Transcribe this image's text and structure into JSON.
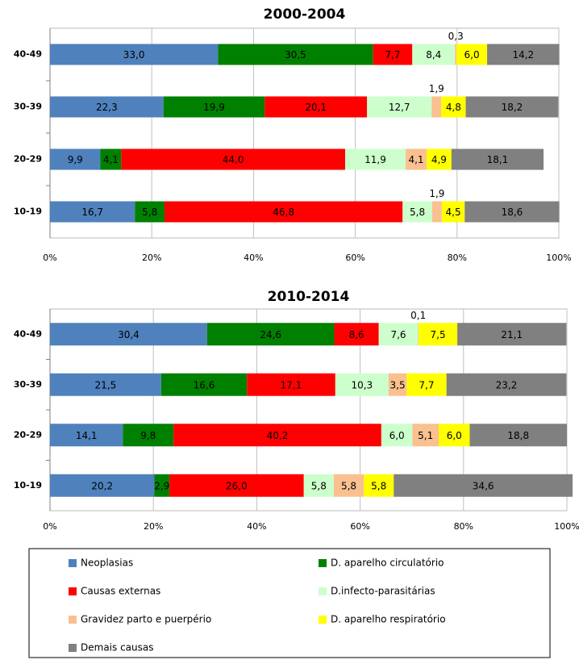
{
  "chart_data": [
    {
      "type": "stacked-bar-horizontal",
      "title": "2000-2004",
      "categories": [
        "40-49",
        "30-39",
        "20-29",
        "10-19"
      ],
      "xlim": [
        0,
        100
      ],
      "xticks": [
        {
          "value": 0,
          "label": "0%"
        },
        {
          "value": 20,
          "label": "20%"
        },
        {
          "value": 40,
          "label": "40%"
        },
        {
          "value": 60,
          "label": "60%"
        },
        {
          "value": 80,
          "label": "80%"
        },
        {
          "value": 100,
          "label": "100%"
        }
      ],
      "grid": true,
      "series": [
        {
          "name": "Neoplasias",
          "color": "#4f81bd",
          "values": [
            33.0,
            22.3,
            9.9,
            16.7
          ],
          "value_labels": [
            "33,0",
            "22,3",
            "9,9",
            "16,7"
          ]
        },
        {
          "name": "D. aparelho circulatório",
          "color": "#008000",
          "values": [
            30.5,
            19.9,
            4.1,
            5.8
          ],
          "value_labels": [
            "30,5",
            "19,9",
            "4,1",
            "5,8"
          ]
        },
        {
          "name": "Causas externas",
          "color": "#ff0000",
          "values": [
            7.7,
            20.1,
            44.0,
            46.8
          ],
          "value_labels": [
            "7,7",
            "20,1",
            "44,0",
            "46,8"
          ]
        },
        {
          "name": "D.infecto-parasitárias",
          "color": "#ccffcc",
          "values": [
            8.4,
            12.7,
            11.9,
            5.8
          ],
          "value_labels": [
            "8,4",
            "12,7",
            "11,9",
            "5,8"
          ]
        },
        {
          "name": "Gravidez parto e puerpério",
          "color": "#fac090",
          "values": [
            0.3,
            1.9,
            4.1,
            1.9
          ],
          "value_labels": [
            "0,3",
            "1,9",
            "4,1",
            "1,9"
          ]
        },
        {
          "name": "D. aparelho respiratório",
          "color": "#ffff00",
          "values": [
            6.0,
            4.8,
            4.9,
            4.5
          ],
          "value_labels": [
            "6,0",
            "4,8",
            "4,9",
            "4,5"
          ]
        },
        {
          "name": "Demais causas",
          "color": "#808080",
          "values": [
            14.2,
            18.2,
            18.1,
            18.6
          ],
          "value_labels": [
            "14,2",
            "18,2",
            "18,1",
            "18,6"
          ]
        }
      ]
    },
    {
      "type": "stacked-bar-horizontal",
      "title": "2010-2014",
      "categories": [
        "40-49",
        "30-39",
        "20-29",
        "10-19"
      ],
      "xlim": [
        0,
        100
      ],
      "xticks": [
        {
          "value": 0,
          "label": "0%"
        },
        {
          "value": 20,
          "label": "20%"
        },
        {
          "value": 40,
          "label": "40%"
        },
        {
          "value": 60,
          "label": "60%"
        },
        {
          "value": 80,
          "label": "80%"
        },
        {
          "value": 100,
          "label": "100%"
        }
      ],
      "grid": true,
      "series": [
        {
          "color": "#4f81bd",
          "values": [
            30.4,
            21.5,
            14.1,
            20.2
          ],
          "value_labels": [
            "30,4",
            "21,5",
            "14,1",
            "20,2"
          ]
        },
        {
          "color": "#008000",
          "values": [
            24.6,
            16.6,
            9.8,
            2.9
          ],
          "value_labels": [
            "24,6",
            "16,6",
            "9,8",
            "2,9"
          ]
        },
        {
          "color": "#ff0000",
          "values": [
            8.6,
            17.1,
            40.2,
            26.0
          ],
          "value_labels": [
            "8,6",
            "17,1",
            "40,2",
            "26,0"
          ]
        },
        {
          "color": "#ccffcc",
          "values": [
            7.6,
            10.3,
            6.0,
            5.8
          ],
          "value_labels": [
            "7,6",
            "10,3",
            "6,0",
            "5,8"
          ]
        },
        {
          "color": "#fac090",
          "values": [
            0.1,
            3.5,
            5.1,
            5.8
          ],
          "value_labels": [
            "0,1",
            "3,5",
            "5,1",
            "5,8"
          ]
        },
        {
          "color": "#ffff00",
          "values": [
            7.5,
            7.7,
            6.0,
            5.8
          ],
          "value_labels": [
            "7,5",
            "7,7",
            "6,0",
            "5,8"
          ]
        },
        {
          "color": "#808080",
          "values": [
            21.1,
            23.2,
            18.8,
            34.6
          ],
          "value_labels": [
            "21,1",
            "23,2",
            "18,8",
            "34,6"
          ]
        }
      ]
    }
  ]
}
